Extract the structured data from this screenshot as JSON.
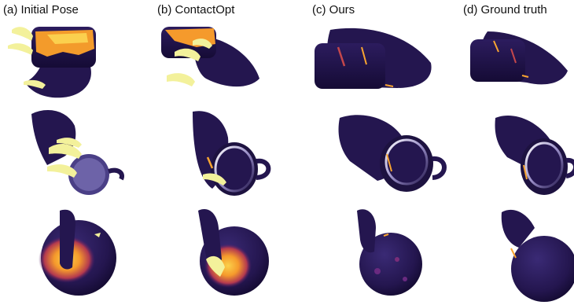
{
  "columns": [
    {
      "title": "(a) Initial Pose"
    },
    {
      "title": "(b) ContactOpt"
    },
    {
      "title": "(c) Ours"
    },
    {
      "title": "(d) Ground truth"
    }
  ],
  "rows": [
    "cylinder-grasp",
    "mug-grasp",
    "sphere-grasp"
  ],
  "colors": {
    "mesh": "#24164f",
    "mesh_shade": "#1a0f3d",
    "contact_low": "#5b1f79",
    "contact_mid": "#c4474b",
    "contact_high": "#f9a531",
    "penetration": "#f3f19b"
  }
}
